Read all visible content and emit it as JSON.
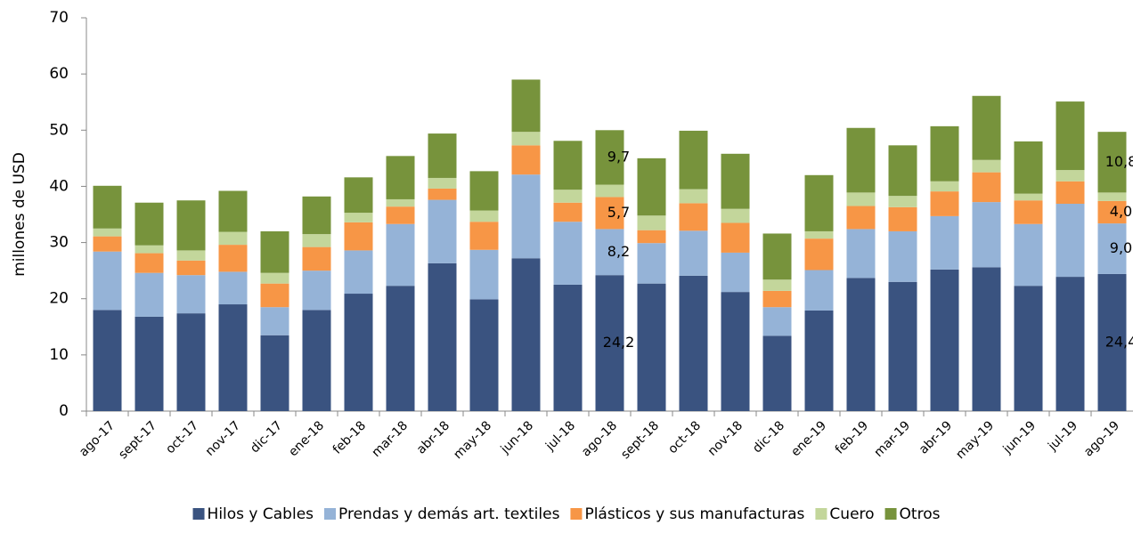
{
  "chart_data": {
    "type": "stacked_bar",
    "y_label": "millones de  USD",
    "categories": [
      "ago-17",
      "sept-17",
      "oct-17",
      "nov-17",
      "dic-17",
      "ene-18",
      "feb-18",
      "mar-18",
      "abr-18",
      "may-18",
      "jun-18",
      "jul-18",
      "ago-18",
      "sept-18",
      "oct-18",
      "nov-18",
      "dic-18",
      "ene-19",
      "feb-19",
      "mar-19",
      "abr-19",
      "may-19",
      "jun-19",
      "jul-19",
      "ago-19"
    ],
    "ylim": [
      0,
      70
    ],
    "yticks": [
      0,
      10,
      20,
      30,
      40,
      50,
      60,
      70
    ],
    "legend": "bottom",
    "series": [
      {
        "name": "Hilos y Cables",
        "color": "#3a5380",
        "values": [
          18,
          16.8,
          17.4,
          19,
          13.5,
          18,
          20.9,
          22.3,
          26.3,
          19.9,
          27.2,
          22.5,
          24.2,
          22.7,
          24.1,
          21.2,
          13.4,
          17.9,
          23.7,
          23,
          25.2,
          25.6,
          22.3,
          23.9,
          24.4
        ],
        "value_labels": [
          null,
          null,
          null,
          null,
          null,
          null,
          null,
          null,
          null,
          null,
          null,
          null,
          "24,2",
          null,
          null,
          null,
          null,
          null,
          null,
          null,
          null,
          null,
          null,
          null,
          "24,4"
        ]
      },
      {
        "name": "Prendas y demás art. textiles",
        "color": "#95b3d7",
        "values": [
          10.4,
          7.8,
          6.8,
          5.8,
          5,
          7,
          7.7,
          11,
          11.3,
          8.8,
          14.9,
          11.2,
          8.2,
          7.2,
          8,
          7,
          5.1,
          7.2,
          8.7,
          9,
          9.5,
          11.6,
          11,
          13,
          9
        ],
        "value_labels": [
          null,
          null,
          null,
          null,
          null,
          null,
          null,
          null,
          null,
          null,
          null,
          null,
          "8,2",
          null,
          null,
          null,
          null,
          null,
          null,
          null,
          null,
          null,
          null,
          null,
          "9,0"
        ]
      },
      {
        "name": "Plásticos y sus manufacturas",
        "color": "#f79646",
        "values": [
          2.7,
          3.5,
          2.6,
          4.8,
          4.2,
          4.2,
          5,
          3.1,
          2,
          5,
          5.2,
          3.4,
          5.7,
          2.3,
          4.9,
          5.3,
          2.9,
          5.6,
          4.1,
          4.3,
          4.4,
          5.3,
          4.2,
          4,
          4
        ],
        "value_labels": [
          null,
          null,
          null,
          null,
          null,
          null,
          null,
          null,
          null,
          null,
          null,
          null,
          "5,7",
          null,
          null,
          null,
          null,
          null,
          null,
          null,
          null,
          null,
          null,
          null,
          "4,0"
        ]
      },
      {
        "name": "Cuero",
        "color": "#c3d69b",
        "values": [
          1.4,
          1.4,
          1.8,
          2.3,
          1.9,
          2.3,
          1.7,
          1.3,
          1.9,
          2,
          2.4,
          2.3,
          2.2,
          2.6,
          2.5,
          2.5,
          2,
          1.3,
          2.4,
          2,
          1.8,
          2.2,
          1.2,
          2,
          1.5
        ]
      },
      {
        "name": "Otros",
        "color": "#77933c",
        "values": [
          7.6,
          7.6,
          8.9,
          7.3,
          7.4,
          6.7,
          6.3,
          7.7,
          7.9,
          7,
          9.3,
          8.7,
          9.7,
          10.2,
          10.4,
          9.8,
          8.2,
          10,
          11.5,
          9,
          9.8,
          11.4,
          9.3,
          12.2,
          10.8
        ],
        "value_labels": [
          null,
          null,
          null,
          null,
          null,
          null,
          null,
          null,
          null,
          null,
          null,
          null,
          "9,7",
          null,
          null,
          null,
          null,
          null,
          null,
          null,
          null,
          null,
          null,
          null,
          "10,8"
        ]
      }
    ]
  }
}
